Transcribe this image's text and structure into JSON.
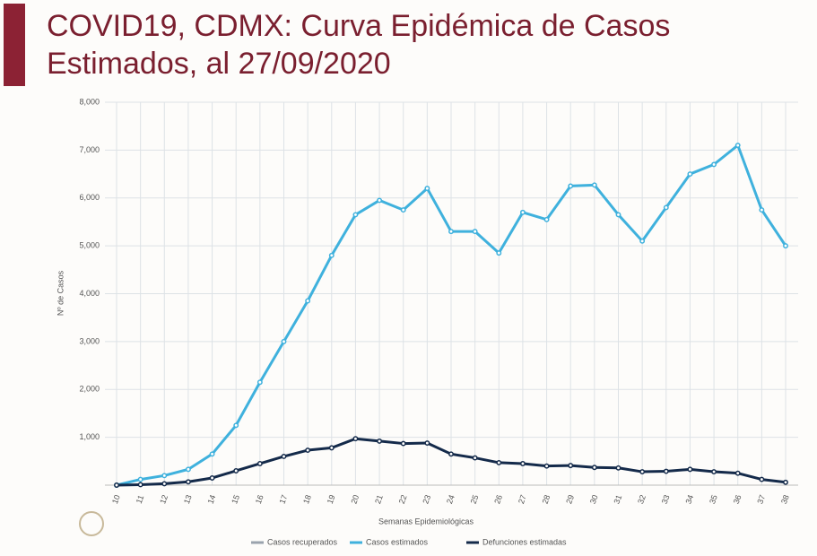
{
  "chart_data": {
    "type": "line",
    "title": "COVID19, CDMX: Curva Epidémica de Casos Estimados, al 27/09/2020",
    "x_label": "Semanas Epidemiológicas",
    "y_label": "Nº de Casos",
    "categories": [
      "10",
      "11",
      "12",
      "13",
      "14",
      "15",
      "16",
      "17",
      "18",
      "19",
      "20",
      "21",
      "22",
      "23",
      "24",
      "25",
      "26",
      "27",
      "28",
      "29",
      "30",
      "31",
      "32",
      "33",
      "34",
      "35",
      "36",
      "37",
      "38"
    ],
    "series": [
      {
        "name": "Casos recuperados",
        "color": "#9aa3ad",
        "values": [
          null,
          null,
          null,
          null,
          null,
          null,
          null,
          null,
          null,
          null,
          null,
          null,
          null,
          null,
          null,
          null,
          null,
          null,
          null,
          null,
          null,
          null,
          null,
          null,
          null,
          null,
          null,
          null,
          null
        ]
      },
      {
        "name": "Casos estimados",
        "color": "#3fb1dd",
        "values": [
          0,
          120,
          200,
          330,
          650,
          1250,
          2150,
          3000,
          3850,
          4800,
          5650,
          5950,
          5750,
          6200,
          5300,
          5300,
          4850,
          5700,
          5550,
          6250,
          6270,
          5650,
          5100,
          5800,
          6500,
          6700,
          7100,
          5750,
          5000
        ]
      },
      {
        "name": "Defunciones estimadas",
        "color": "#142a4a",
        "values": [
          0,
          10,
          30,
          70,
          150,
          300,
          450,
          600,
          730,
          780,
          970,
          920,
          870,
          880,
          650,
          570,
          470,
          450,
          400,
          410,
          370,
          360,
          280,
          290,
          330,
          280,
          250,
          120,
          60
        ]
      }
    ],
    "ylim": [
      0,
      8000
    ],
    "yticks": [
      {
        "value": 1000,
        "label": "1,000"
      },
      {
        "value": 2000,
        "label": "2,000"
      },
      {
        "value": 3000,
        "label": "3,000"
      },
      {
        "value": 4000,
        "label": "4,000"
      },
      {
        "value": 5000,
        "label": "5,000"
      },
      {
        "value": 6000,
        "label": "6,000"
      },
      {
        "value": 7000,
        "label": "7,000"
      },
      {
        "value": 8000,
        "label": "8,000"
      }
    ],
    "grid": true,
    "legend": "bottom"
  }
}
